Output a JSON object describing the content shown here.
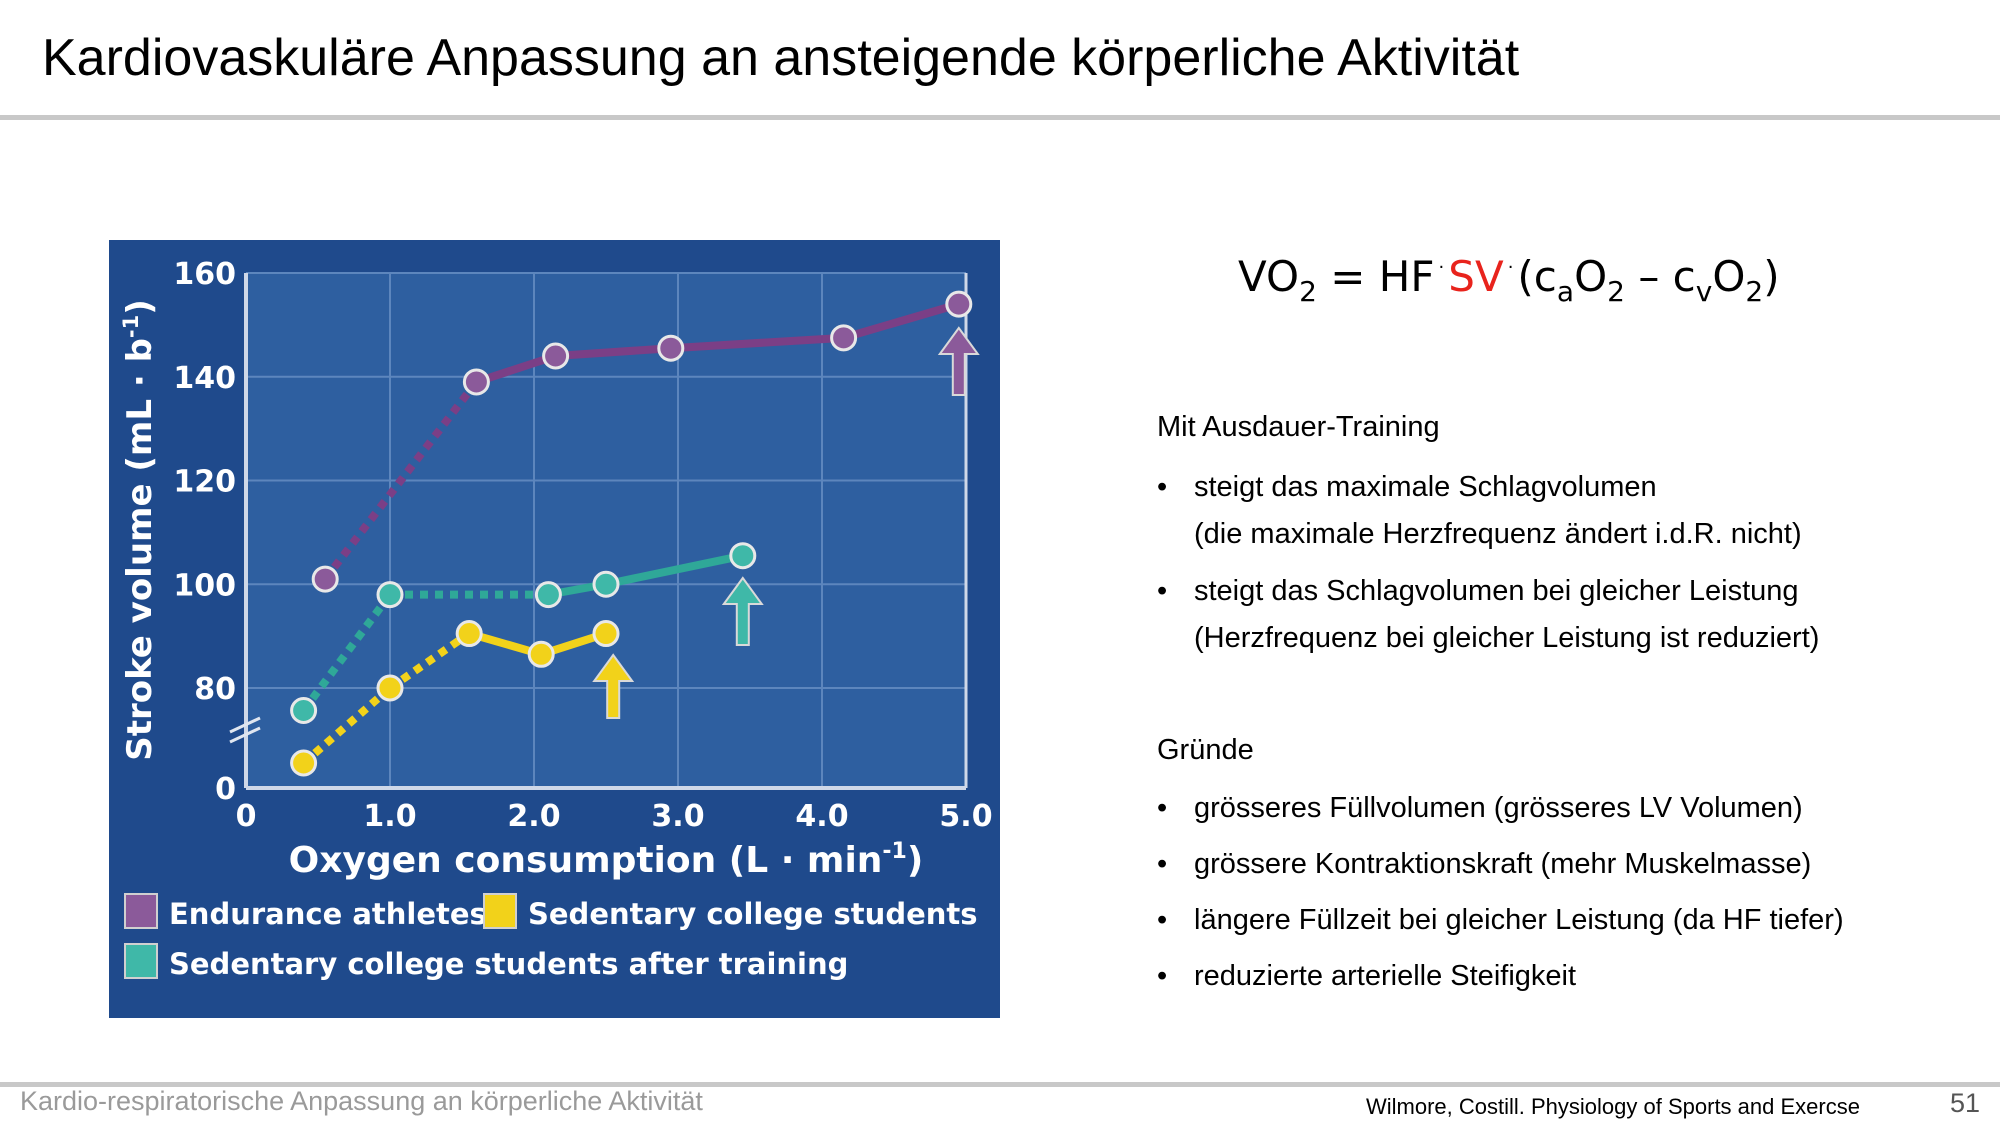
{
  "slide": {
    "title": "Kardiovaskuläre Anpassung an ansteigende körperliche Aktivität",
    "footer": "Kardio-respiratorische Anpassung an körperliche Aktivität",
    "citation": "Wilmore, Costill. Physiology of Sports and Exercse",
    "page_number": "51"
  },
  "formula": {
    "vo": "VO",
    "sub2": "2",
    "eq": " = ",
    "hf": "HF",
    "dot": "·",
    "sv": "SV",
    "open": "(c",
    "sub_a": "a",
    "o": "O",
    "dash": " – c",
    "sub_v": "v",
    "close": ")",
    "sv_color": "#e8231c"
  },
  "notes": {
    "section1_heading": "Mit Ausdauer-Training",
    "section1_items": [
      {
        "line1": "steigt das maximale Schlagvolumen",
        "line2": "(die maximale Herzfrequenz ändert i.d.R. nicht)"
      },
      {
        "line1": "steigt das Schlagvolumen bei gleicher Leistung",
        "line2": "(Herzfrequenz bei gleicher Leistung ist reduziert)"
      }
    ],
    "section2_heading": "Gründe",
    "section2_items": [
      "grösseres Füllvolumen (grösseres LV Volumen)",
      "grössere Kontraktionskraft (mehr Muskelmasse)",
      "längere Füllzeit bei gleicher Leistung (da HF tiefer)",
      "reduzierte arterielle Steifigkeit"
    ],
    "bullet": "•"
  },
  "chart_data": {
    "type": "line",
    "xlabel": "Oxygen consumption (L · min",
    "xlabel_sup": "-1",
    "xlabel_end": ")",
    "ylabel": "Stroke volume (mL · b",
    "ylabel_sup": "-1",
    "ylabel_end": ")",
    "x_ticks": [
      "0",
      "1.0",
      "2.0",
      "3.0",
      "4.0",
      "5.0"
    ],
    "y_ticks": [
      "0",
      "80",
      "100",
      "120",
      "140",
      "160"
    ],
    "y_axis_break": "between 0 and 80",
    "xlim": [
      0,
      5
    ],
    "ylim": [
      60,
      160
    ],
    "grid": true,
    "legend_position": "bottom",
    "plot_background": "#2e5fa0",
    "panel_background": "#1f4a8c",
    "series": [
      {
        "name": "Endurance athletes",
        "color": "#8b5a9a",
        "line_color": "#7b3f86",
        "x": [
          0.55,
          1.6,
          2.15,
          2.95,
          4.15,
          4.95
        ],
        "y": [
          101,
          139,
          144,
          145.5,
          147.5,
          154
        ],
        "dashed_segments": 1,
        "arrow_at_x": 4.95
      },
      {
        "name": "Sedentary college students",
        "color": "#f2d21a",
        "line_color": "#f2d21a",
        "x": [
          0.4,
          1.0,
          1.55,
          2.05,
          2.5
        ],
        "y": [
          65,
          80,
          90.5,
          86.5,
          90.5
        ],
        "dashed_segments": 2,
        "arrow_at_x": 2.55
      },
      {
        "name": "Sedentary college students after training",
        "color": "#3fb8a8",
        "line_color": "#2fa898",
        "x": [
          0.4,
          1.0,
          2.1,
          2.5,
          3.45
        ],
        "y": [
          75.5,
          98,
          98,
          100,
          105.5
        ],
        "dashed_segments": 2,
        "arrow_at_x": 3.45
      }
    ]
  }
}
